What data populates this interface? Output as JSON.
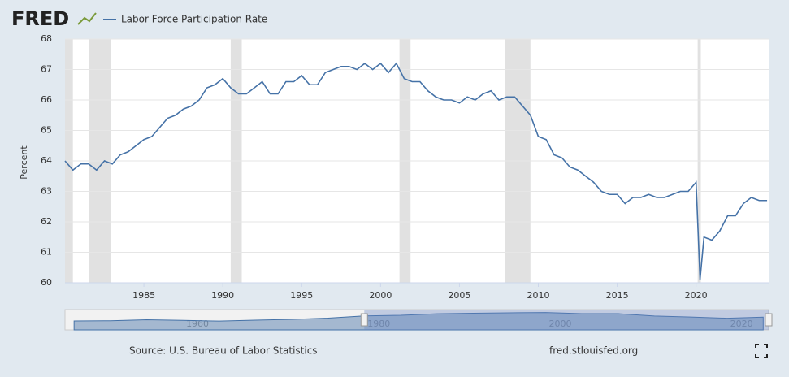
{
  "chart_data": {
    "type": "line",
    "logo": "FRED",
    "ylabel": "Percent",
    "source": "Source: U.S. Bureau of Labor Statistics",
    "site": "fred.stlouisfed.org",
    "xlim": [
      1980,
      2024.6
    ],
    "xticks": [
      1985,
      1990,
      1995,
      2000,
      2005,
      2010,
      2015,
      2020
    ],
    "ylim": [
      60,
      68
    ],
    "yticks": [
      60,
      61,
      62,
      63,
      64,
      65,
      66,
      67,
      68
    ],
    "grid": true,
    "recessions": [
      [
        1980.0,
        1980.5
      ],
      [
        1981.5,
        1982.9
      ],
      [
        1990.5,
        1991.2
      ],
      [
        2001.2,
        2001.9
      ],
      [
        2007.9,
        2009.5
      ],
      [
        2020.1,
        2020.3
      ]
    ],
    "recession_color": "#e1e1e1",
    "x": [
      1980.0,
      1980.5,
      1981.0,
      1981.5,
      1982.0,
      1982.5,
      1983.0,
      1983.5,
      1984.0,
      1984.5,
      1985.0,
      1985.5,
      1986.0,
      1986.5,
      1987.0,
      1987.5,
      1988.0,
      1988.5,
      1989.0,
      1989.5,
      1990.0,
      1990.5,
      1991.0,
      1991.5,
      1992.0,
      1992.5,
      1993.0,
      1993.5,
      1994.0,
      1994.5,
      1995.0,
      1995.5,
      1996.0,
      1996.5,
      1997.0,
      1997.5,
      1998.0,
      1998.5,
      1999.0,
      1999.5,
      2000.0,
      2000.5,
      2001.0,
      2001.5,
      2002.0,
      2002.5,
      2003.0,
      2003.5,
      2004.0,
      2004.5,
      2005.0,
      2005.5,
      2006.0,
      2006.5,
      2007.0,
      2007.5,
      2008.0,
      2008.5,
      2009.0,
      2009.5,
      2010.0,
      2010.5,
      2011.0,
      2011.5,
      2012.0,
      2012.5,
      2013.0,
      2013.5,
      2014.0,
      2014.5,
      2015.0,
      2015.5,
      2016.0,
      2016.5,
      2017.0,
      2017.5,
      2018.0,
      2018.5,
      2019.0,
      2019.5,
      2020.0,
      2020.25,
      2020.5,
      2021.0,
      2021.5,
      2022.0,
      2022.5,
      2023.0,
      2023.5,
      2024.0,
      2024.5
    ],
    "series": [
      {
        "name": "Labor Force Participation Rate",
        "color": "#4572a7",
        "values": [
          64.0,
          63.7,
          63.9,
          63.9,
          63.7,
          64.0,
          63.9,
          64.2,
          64.3,
          64.5,
          64.7,
          64.8,
          65.1,
          65.4,
          65.5,
          65.7,
          65.8,
          66.0,
          66.4,
          66.5,
          66.7,
          66.4,
          66.2,
          66.2,
          66.4,
          66.6,
          66.2,
          66.2,
          66.6,
          66.6,
          66.8,
          66.5,
          66.5,
          66.9,
          67.0,
          67.1,
          67.1,
          67.0,
          67.2,
          67.0,
          67.2,
          66.9,
          67.2,
          66.7,
          66.6,
          66.6,
          66.3,
          66.1,
          66.0,
          66.0,
          65.9,
          66.1,
          66.0,
          66.2,
          66.3,
          66.0,
          66.1,
          66.1,
          65.8,
          65.5,
          64.8,
          64.7,
          64.2,
          64.1,
          63.8,
          63.7,
          63.5,
          63.3,
          63.0,
          62.9,
          62.9,
          62.6,
          62.8,
          62.8,
          62.9,
          62.8,
          62.8,
          62.9,
          63.0,
          63.0,
          63.3,
          60.1,
          61.5,
          61.4,
          61.7,
          62.2,
          62.2,
          62.6,
          62.8,
          62.7,
          62.7
        ]
      }
    ],
    "navigator": {
      "xlim": [
        1947,
        2024.6
      ],
      "ylim": [
        50,
        70
      ],
      "xticks": [
        1960,
        1980,
        2000,
        2020
      ],
      "x": [
        1948,
        1952,
        1956,
        1960,
        1964,
        1968,
        1972,
        1976,
        1980,
        1984,
        1988,
        1992,
        1996,
        2000,
        2004,
        2008,
        2012,
        2016,
        2020,
        2024
      ],
      "values": [
        58.8,
        59.0,
        60.0,
        59.4,
        58.7,
        59.6,
        60.4,
        61.6,
        63.8,
        64.4,
        65.9,
        66.4,
        66.8,
        67.1,
        66.0,
        66.0,
        63.7,
        62.7,
        61.5,
        62.6
      ]
    }
  }
}
